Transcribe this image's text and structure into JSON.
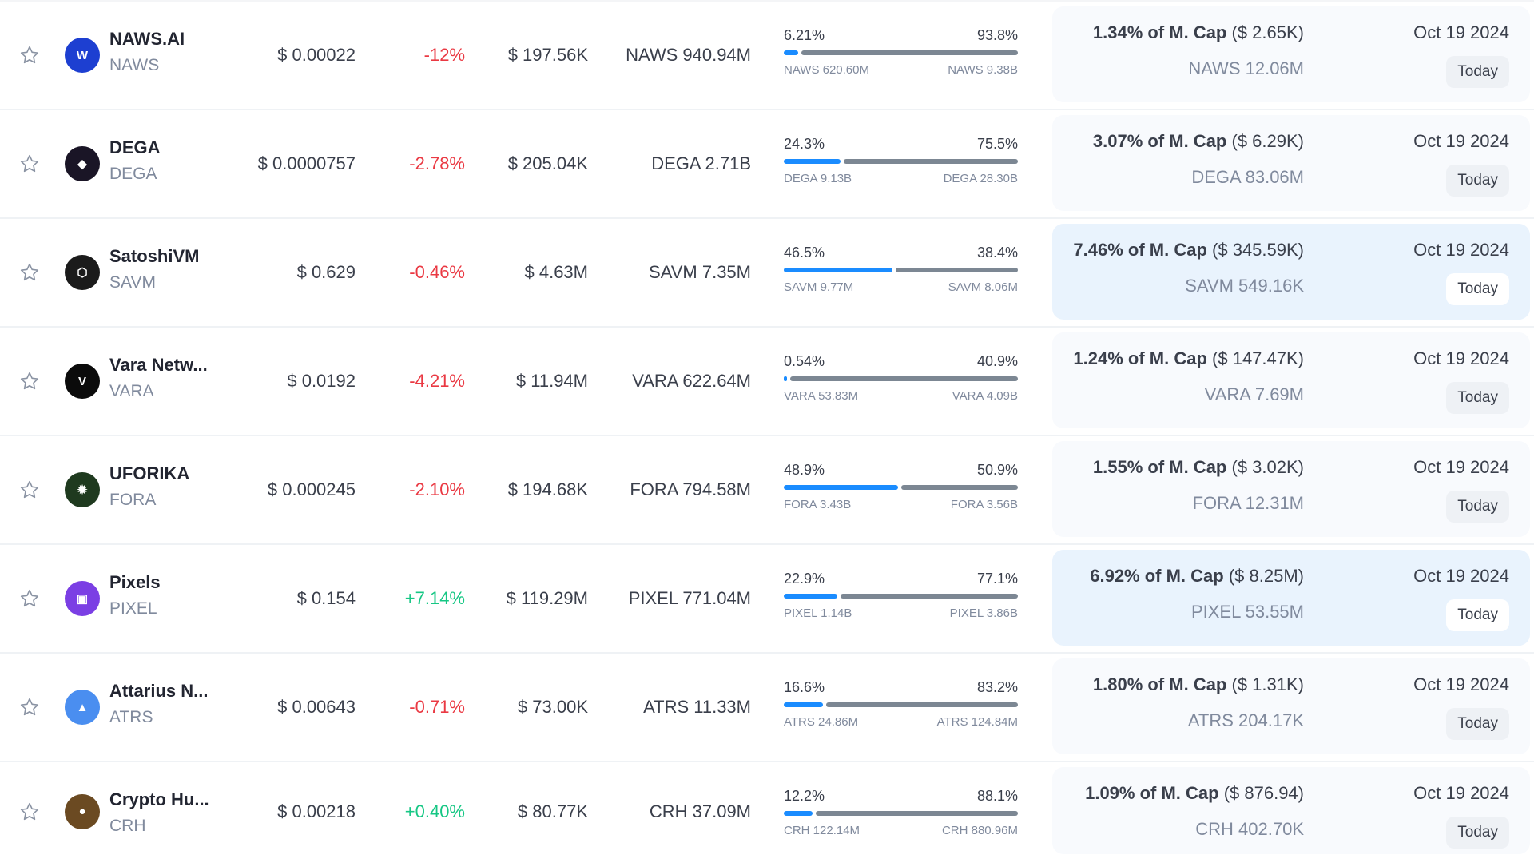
{
  "colors": {
    "negative": "#ea3943",
    "positive": "#16c784",
    "bar_blue": "#1a8cff",
    "bar_grey": "#7c8793"
  },
  "rows": [
    {
      "name": "NAWS.AI",
      "symbol": "NAWS",
      "icon": "naws-logo-icon",
      "icon_bg": "#1d3fd1",
      "icon_text": "W",
      "price": "$ 0.00022",
      "change": "-12%",
      "direction": "down",
      "volume": "$ 197.56K",
      "supply": "NAWS 940.94M",
      "left_pct_label": "6.21%",
      "right_pct_label": "93.8%",
      "left_pct": 6.21,
      "right_pct": 93.8,
      "left_amount": "NAWS 620.60M",
      "right_amount": "NAWS 9.38B",
      "mcap_pct": "1.34% of M. Cap",
      "mcap_value": "($ 2.65K)",
      "unlock_amount": "NAWS 12.06M",
      "date": "Oct 19 2024",
      "button": "Today",
      "highlight": false
    },
    {
      "name": "DEGA",
      "symbol": "DEGA",
      "icon": "dega-logo-icon",
      "icon_bg": "#1a1526",
      "icon_text": "◆",
      "price": "$ 0.0000757",
      "change": "-2.78%",
      "direction": "down",
      "volume": "$ 205.04K",
      "supply": "DEGA 2.71B",
      "left_pct_label": "24.3%",
      "right_pct_label": "75.5%",
      "left_pct": 24.3,
      "right_pct": 75.5,
      "left_amount": "DEGA 9.13B",
      "right_amount": "DEGA 28.30B",
      "mcap_pct": "3.07% of M. Cap",
      "mcap_value": "($ 6.29K)",
      "unlock_amount": "DEGA 83.06M",
      "date": "Oct 19 2024",
      "button": "Today",
      "highlight": false
    },
    {
      "name": "SatoshiVM",
      "symbol": "SAVM",
      "icon": "satoshivm-logo-icon",
      "icon_bg": "#1b1b1b",
      "icon_text": "⬡",
      "price": "$ 0.629",
      "change": "-0.46%",
      "direction": "down",
      "volume": "$ 4.63M",
      "supply": "SAVM 7.35M",
      "left_pct_label": "46.5%",
      "right_pct_label": "38.4%",
      "left_pct": 46.5,
      "right_pct": 38.4,
      "left_amount": "SAVM 9.77M",
      "right_amount": "SAVM 8.06M",
      "mcap_pct": "7.46% of M. Cap",
      "mcap_value": "($ 345.59K)",
      "unlock_amount": "SAVM 549.16K",
      "date": "Oct 19 2024",
      "button": "Today",
      "highlight": true
    },
    {
      "name": "Vara Netw...",
      "symbol": "VARA",
      "icon": "vara-logo-icon",
      "icon_bg": "#0b0b0b",
      "icon_text": "V",
      "price": "$ 0.0192",
      "change": "-4.21%",
      "direction": "down",
      "volume": "$ 11.94M",
      "supply": "VARA 622.64M",
      "left_pct_label": "0.54%",
      "right_pct_label": "40.9%",
      "left_pct": 0.54,
      "right_pct": 40.9,
      "left_amount": "VARA 53.83M",
      "right_amount": "VARA 4.09B",
      "mcap_pct": "1.24% of M. Cap",
      "mcap_value": "($ 147.47K)",
      "unlock_amount": "VARA 7.69M",
      "date": "Oct 19 2024",
      "button": "Today",
      "highlight": false
    },
    {
      "name": "UFORIKA",
      "symbol": "FORA",
      "icon": "uforika-logo-icon",
      "icon_bg": "#1f3a1f",
      "icon_text": "✹",
      "price": "$ 0.000245",
      "change": "-2.10%",
      "direction": "down",
      "volume": "$ 194.68K",
      "supply": "FORA 794.58M",
      "left_pct_label": "48.9%",
      "right_pct_label": "50.9%",
      "left_pct": 48.9,
      "right_pct": 50.9,
      "left_amount": "FORA 3.43B",
      "right_amount": "FORA 3.56B",
      "mcap_pct": "1.55% of M. Cap",
      "mcap_value": "($ 3.02K)",
      "unlock_amount": "FORA 12.31M",
      "date": "Oct 19 2024",
      "button": "Today",
      "highlight": false
    },
    {
      "name": "Pixels",
      "symbol": "PIXEL",
      "icon": "pixels-logo-icon",
      "icon_bg": "#7b3fe4",
      "icon_text": "▣",
      "price": "$ 0.154",
      "change": "+7.14%",
      "direction": "up",
      "volume": "$ 119.29M",
      "supply": "PIXEL 771.04M",
      "left_pct_label": "22.9%",
      "right_pct_label": "77.1%",
      "left_pct": 22.9,
      "right_pct": 77.1,
      "left_amount": "PIXEL 1.14B",
      "right_amount": "PIXEL 3.86B",
      "mcap_pct": "6.92% of M. Cap",
      "mcap_value": "($ 8.25M)",
      "unlock_amount": "PIXEL 53.55M",
      "date": "Oct 19 2024",
      "button": "Today",
      "highlight": true
    },
    {
      "name": "Attarius N...",
      "symbol": "ATRS",
      "icon": "attarius-logo-icon",
      "icon_bg": "#4a8ef0",
      "icon_text": "▲",
      "price": "$ 0.00643",
      "change": "-0.71%",
      "direction": "down",
      "volume": "$ 73.00K",
      "supply": "ATRS 11.33M",
      "left_pct_label": "16.6%",
      "right_pct_label": "83.2%",
      "left_pct": 16.6,
      "right_pct": 83.2,
      "left_amount": "ATRS 24.86M",
      "right_amount": "ATRS 124.84M",
      "mcap_pct": "1.80% of M. Cap",
      "mcap_value": "($ 1.31K)",
      "unlock_amount": "ATRS 204.17K",
      "date": "Oct 19 2024",
      "button": "Today",
      "highlight": false
    },
    {
      "name": "Crypto Hu...",
      "symbol": "CRH",
      "icon": "crypto-hunters-logo-icon",
      "icon_bg": "#6b4a22",
      "icon_text": "●",
      "price": "$ 0.00218",
      "change": "+0.40%",
      "direction": "up",
      "volume": "$ 80.77K",
      "supply": "CRH 37.09M",
      "left_pct_label": "12.2%",
      "right_pct_label": "88.1%",
      "left_pct": 12.2,
      "right_pct": 88.1,
      "left_amount": "CRH 122.14M",
      "right_amount": "CRH 880.96M",
      "mcap_pct": "1.09% of M. Cap",
      "mcap_value": "($ 876.94)",
      "unlock_amount": "CRH 402.70K",
      "date": "Oct 19 2024",
      "button": "Today",
      "highlight": false
    }
  ]
}
